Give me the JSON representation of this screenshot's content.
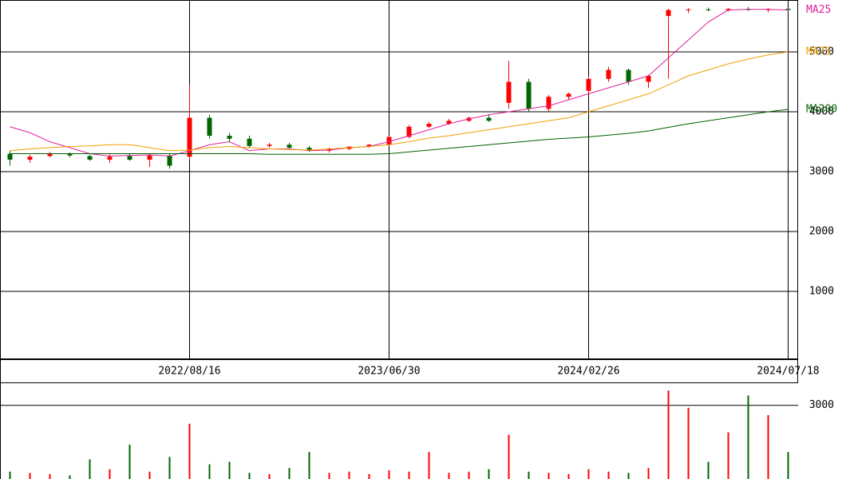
{
  "chart_data": {
    "type": "candlestick",
    "categories": [
      null,
      null,
      null,
      null,
      null,
      null,
      null,
      null,
      null,
      "2022/08/16",
      null,
      null,
      null,
      null,
      null,
      null,
      null,
      null,
      null,
      "2023/06/30",
      null,
      null,
      null,
      null,
      null,
      null,
      null,
      null,
      null,
      "2024/02/26",
      null,
      null,
      null,
      null,
      null,
      null,
      null,
      null,
      null,
      "2024/07/18"
    ],
    "open": [
      3300,
      3200,
      3260,
      3300,
      3260,
      3200,
      3260,
      3200,
      3270,
      3250,
      3900,
      3600,
      3550,
      3430,
      3450,
      3400,
      3350,
      3380,
      3420,
      3450,
      3580,
      3750,
      3800,
      3850,
      3900,
      4150,
      4500,
      4050,
      4250,
      4350,
      4550,
      4700,
      4500,
      5600,
      5700,
      5710,
      5700,
      5720,
      5700,
      5720
    ],
    "high": [
      3350,
      3280,
      3330,
      3320,
      3280,
      3290,
      3300,
      3300,
      3300,
      4450,
      3950,
      3650,
      3600,
      3480,
      3480,
      3430,
      3400,
      3420,
      3460,
      3600,
      3780,
      3830,
      3880,
      3920,
      3950,
      4850,
      4550,
      4280,
      4320,
      4600,
      4750,
      4720,
      4620,
      5720,
      5730,
      5740,
      5730,
      5750,
      5730,
      5730
    ],
    "low": [
      3100,
      3150,
      3240,
      3240,
      3180,
      3150,
      3180,
      3080,
      3050,
      3200,
      3550,
      3500,
      3400,
      3400,
      3380,
      3330,
      3320,
      3360,
      3400,
      3430,
      3560,
      3730,
      3780,
      3830,
      3830,
      4050,
      4000,
      4000,
      4200,
      4300,
      4500,
      4450,
      4400,
      4550,
      5650,
      5680,
      5670,
      5690,
      5660,
      5680
    ],
    "close": [
      3200,
      3250,
      3300,
      3270,
      3200,
      3250,
      3200,
      3270,
      3100,
      3900,
      3600,
      3550,
      3430,
      3450,
      3400,
      3350,
      3380,
      3420,
      3450,
      3580,
      3750,
      3800,
      3850,
      3900,
      3850,
      4500,
      4050,
      4250,
      4300,
      4550,
      4700,
      4500,
      4600,
      5700,
      5710,
      5700,
      5720,
      5700,
      5720,
      5700
    ],
    "volume": [
      300,
      250,
      200,
      150,
      800,
      400,
      1400,
      300,
      900,
      2250,
      600,
      700,
      250,
      200,
      450,
      1100,
      250,
      300,
      200,
      350,
      300,
      1100,
      250,
      300,
      400,
      1800,
      300,
      250,
      200,
      400,
      300,
      250,
      450,
      3600,
      2900,
      700,
      1900,
      3400,
      2600,
      1100
    ],
    "series": [
      {
        "name": "MA25",
        "color": "#e0209a",
        "values": [
          3750,
          3650,
          3500,
          3400,
          3300,
          3260,
          3270,
          3280,
          3260,
          3350,
          3450,
          3500,
          3350,
          3380,
          3380,
          3350,
          3360,
          3400,
          3420,
          3500,
          3600,
          3700,
          3800,
          3880,
          3950,
          4000,
          4050,
          4100,
          4200,
          4300,
          4400,
          4500,
          4600,
          4900,
          5200,
          5500,
          5700,
          5710,
          5710,
          5700
        ]
      },
      {
        "name": "MA75",
        "color": "#f0a000",
        "values": [
          3350,
          3380,
          3400,
          3420,
          3430,
          3450,
          3450,
          3400,
          3350,
          3360,
          3400,
          3420,
          3400,
          3380,
          3370,
          3360,
          3380,
          3400,
          3420,
          3450,
          3500,
          3560,
          3600,
          3650,
          3700,
          3750,
          3800,
          3850,
          3900,
          4000,
          4100,
          4200,
          4300,
          4450,
          4600,
          4700,
          4800,
          4880,
          4950,
          5000
        ]
      },
      {
        "name": "MA200",
        "color": "#006000",
        "values": [
          3300,
          3300,
          3300,
          3300,
          3300,
          3300,
          3300,
          3300,
          3300,
          3300,
          3300,
          3300,
          3300,
          3290,
          3290,
          3290,
          3290,
          3290,
          3290,
          3300,
          3330,
          3360,
          3390,
          3420,
          3450,
          3480,
          3510,
          3540,
          3560,
          3580,
          3610,
          3640,
          3680,
          3740,
          3800,
          3850,
          3900,
          3950,
          4000,
          4040
        ]
      }
    ],
    "up_color": "#ff0000",
    "down_color": "#006600",
    "ylim": [
      -133,
      5867
    ],
    "yticks": [
      1000,
      2000,
      3000,
      4000,
      5000
    ],
    "volume_ylim": [
      0,
      3900
    ],
    "volume_yticks": [
      3000
    ],
    "grid": true
  }
}
